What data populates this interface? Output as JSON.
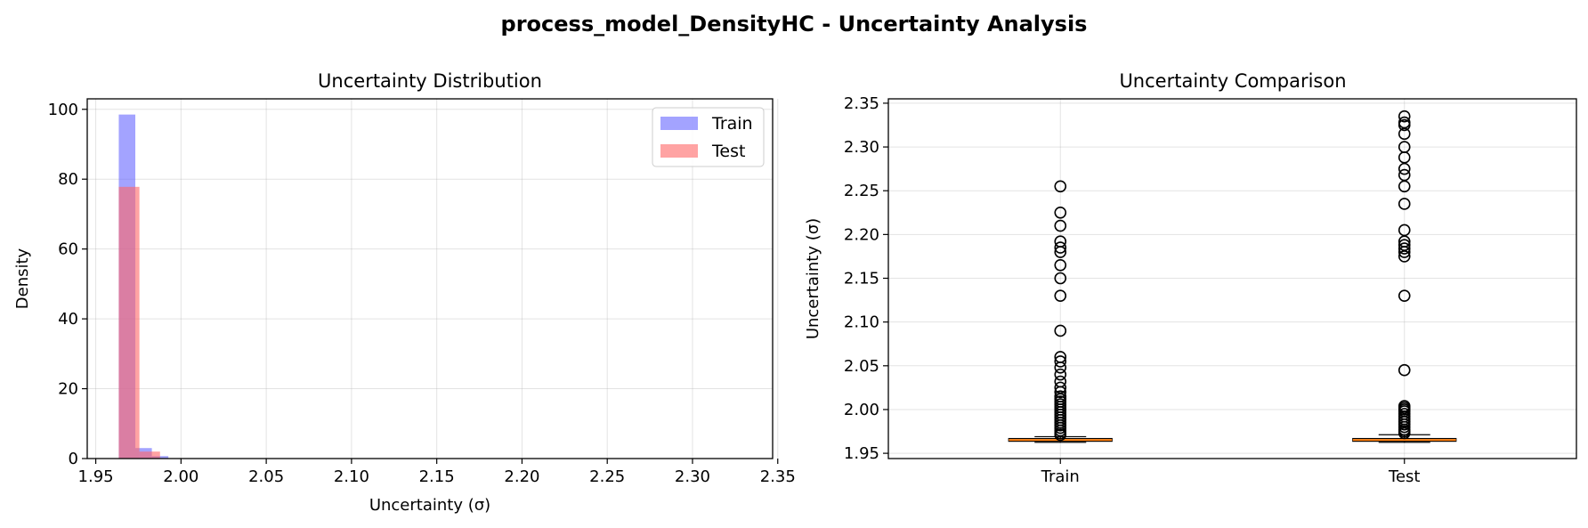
{
  "figure": {
    "title": "process_model_DensityHC - Uncertainty Analysis"
  },
  "chart_data": [
    {
      "type": "bar",
      "subtype": "histogram",
      "title": "Uncertainty Distribution",
      "xlabel": "Uncertainty (σ)",
      "ylabel": "Density",
      "xlim": [
        1.945,
        2.347
      ],
      "ylim": [
        0,
        103
      ],
      "xticks": [
        "1.95",
        "2.00",
        "2.05",
        "2.10",
        "2.15",
        "2.20",
        "2.25",
        "2.30",
        "2.35"
      ],
      "yticks": [
        "0",
        "20",
        "40",
        "60",
        "80",
        "100"
      ],
      "grid": true,
      "legend": {
        "position": "top-right",
        "entries": [
          "Train",
          "Test"
        ]
      },
      "series": [
        {
          "name": "Train",
          "color": "#6666ff",
          "bins": [
            {
              "x0": 1.9635,
              "x1": 1.9732,
              "value": 98.5
            },
            {
              "x0": 1.9732,
              "x1": 1.9829,
              "value": 3
            },
            {
              "x0": 1.9829,
              "x1": 1.9926,
              "value": 0.7
            }
          ]
        },
        {
          "name": "Test",
          "color": "#ff6666",
          "bins": [
            {
              "x0": 1.9635,
              "x1": 1.9756,
              "value": 77.8
            },
            {
              "x0": 1.9756,
              "x1": 1.9877,
              "value": 2
            }
          ]
        }
      ]
    },
    {
      "type": "box",
      "title": "Uncertainty Comparison",
      "xlabel": "",
      "ylabel": "Uncertainty (σ)",
      "ylim": [
        1.944,
        2.355
      ],
      "categories": [
        "Train",
        "Test"
      ],
      "yticks": [
        "1.95",
        "2.00",
        "2.05",
        "2.10",
        "2.15",
        "2.20",
        "2.25",
        "2.30",
        "2.35"
      ],
      "grid": true,
      "colors": {
        "median": "#ff7f0e",
        "box": "#000000"
      },
      "series": [
        {
          "name": "Train",
          "whisker_low": 1.9625,
          "q1": 1.9638,
          "median": 1.9652,
          "q3": 1.9668,
          "whisker_high": 1.969,
          "outliers": [
            2.255,
            2.225,
            2.21,
            2.192,
            2.185,
            2.18,
            2.165,
            2.15,
            2.13,
            2.09,
            2.06,
            2.055,
            2.048,
            2.04,
            2.032,
            2.025,
            2.02,
            2.015,
            2.012,
            2.009,
            2.006,
            2.003,
            2.0,
            1.997,
            1.994,
            1.991,
            1.988,
            1.985,
            1.982,
            1.979,
            1.976,
            1.973,
            1.971
          ]
        },
        {
          "name": "Test",
          "whisker_low": 1.9625,
          "q1": 1.9638,
          "median": 1.9652,
          "q3": 1.9668,
          "whisker_high": 1.9712,
          "outliers": [
            2.335,
            2.328,
            2.325,
            2.315,
            2.3,
            2.288,
            2.275,
            2.268,
            2.255,
            2.235,
            2.205,
            2.192,
            2.188,
            2.184,
            2.18,
            2.175,
            2.13,
            2.045,
            2.004,
            2.002,
            2.0,
            1.998,
            1.995,
            1.992,
            1.989,
            1.986,
            1.983,
            1.98,
            1.977,
            1.975,
            1.973
          ]
        }
      ]
    }
  ]
}
